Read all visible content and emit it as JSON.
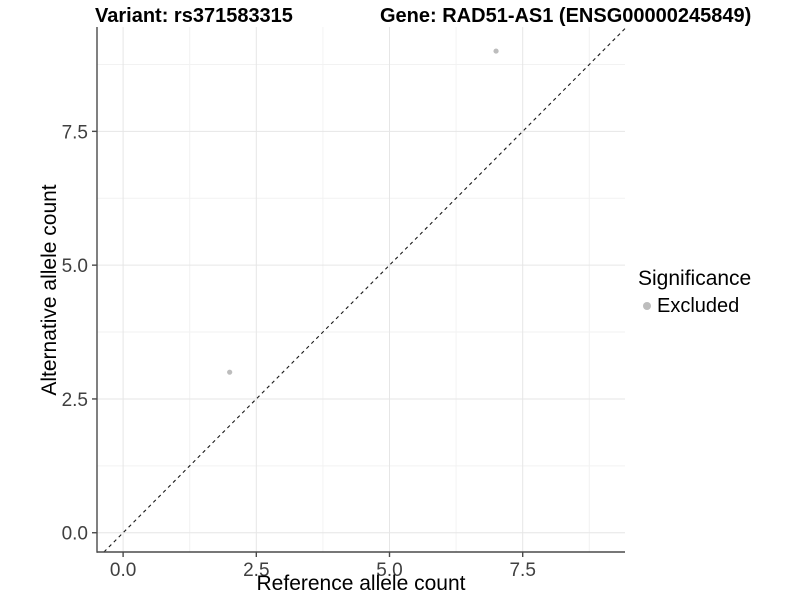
{
  "chart_data": {
    "type": "scatter",
    "titles": {
      "left": "Variant: rs371583315",
      "right": "Gene: RAD51-AS1 (ENSG00000245849)"
    },
    "xlabel": "Reference allele count",
    "ylabel": "Alternative allele count",
    "xlim": [
      -0.49,
      9.42
    ],
    "ylim": [
      -0.36,
      9.45
    ],
    "xticks": {
      "values": [
        0,
        2.5,
        5,
        7.5
      ],
      "labels": [
        "0.0",
        "2.5",
        "5.0",
        "7.5"
      ]
    },
    "yticks": {
      "values": [
        0,
        2.5,
        5,
        7.5
      ],
      "labels": [
        "0.0",
        "2.5",
        "5.0",
        "7.5"
      ]
    },
    "minor_x": [
      1.25,
      3.75,
      6.25,
      8.75
    ],
    "minor_y": [
      1.25,
      3.75,
      6.25,
      8.75
    ],
    "grid": true,
    "identity_line": {
      "show": true,
      "style": "dashed"
    },
    "points": [
      {
        "x": 2,
        "y": 3,
        "significance": "Excluded"
      },
      {
        "x": 7,
        "y": 9,
        "significance": "Excluded"
      }
    ],
    "legend": {
      "title": "Significance",
      "position": "right",
      "entries": [
        {
          "label": "Excluded",
          "color": "#bdbdbd"
        }
      ]
    },
    "colors": {
      "point_excluded": "#bdbdbd",
      "grid_major": "#e6e6e6",
      "grid_minor": "#f2f2f2",
      "axis_line": "#4a4a4a",
      "identity_line": "#1a1a1a",
      "tick_label": "#404040"
    }
  }
}
